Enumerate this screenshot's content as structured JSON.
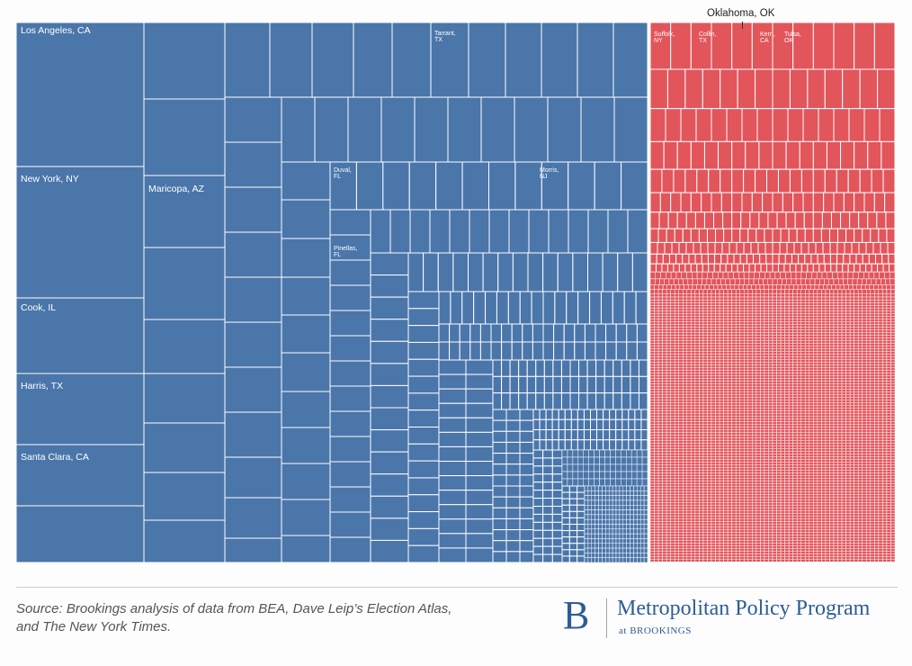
{
  "chart_data": {
    "type": "treemap",
    "title": "",
    "colors": {
      "democrat": "#4a76aa",
      "republican": "#e2555b",
      "grid": "#ffffff"
    },
    "groups": [
      {
        "name": "democrat",
        "color": "#4a76aa",
        "labeled_counties": [
          {
            "name": "Los Angeles, CA"
          },
          {
            "name": "New York, NY"
          },
          {
            "name": "Cook, IL"
          },
          {
            "name": "Harris, TX"
          },
          {
            "name": "Santa Clara, CA"
          },
          {
            "name": "Maricopa, AZ"
          },
          {
            "name": "Tarrant, TX"
          },
          {
            "name": "Duval, FL"
          },
          {
            "name": "Morris, NJ"
          },
          {
            "name": "Pinellas, FL"
          }
        ]
      },
      {
        "name": "republican",
        "color": "#e2555b",
        "labeled_counties": [
          {
            "name": "Suffolk, NY"
          },
          {
            "name": "Collin, TX"
          },
          {
            "name": "Kern, CA"
          },
          {
            "name": "Tulsa, OK"
          }
        ]
      }
    ],
    "annotation": "Oklahoma, OK"
  },
  "labels": {
    "los_angeles": "Los Angeles, CA",
    "new_york": "New York, NY",
    "cook": "Cook, IL",
    "harris": "Harris, TX",
    "santa_clara": "Santa Clara, CA",
    "maricopa": "Maricopa, AZ",
    "tarrant_1": "Tarrant,",
    "tarrant_2": "TX",
    "duval_1": "Duval,",
    "duval_2": "FL",
    "morris_1": "Morris,",
    "morris_2": "NJ",
    "pinellas_1": "Pinellas,",
    "pinellas_2": "FL",
    "suffolk_1": "Suffolk,",
    "suffolk_2": "NY",
    "collin_1": "Collin,",
    "collin_2": "TX",
    "kern_1": "Kern,",
    "kern_2": "CA",
    "tulsa_1": "Tulsa,",
    "tulsa_2": "OK",
    "oklahoma": "Oklahoma, OK"
  },
  "footer": {
    "source_line1": "Source: Brookings analysis of data from BEA, Dave Leip’s Election Atlas,",
    "source_line2": "and The New York Times.",
    "logo_letter": "B",
    "logo_main": "Metropolitan Policy Program",
    "logo_sub": "at BROOKINGS"
  }
}
